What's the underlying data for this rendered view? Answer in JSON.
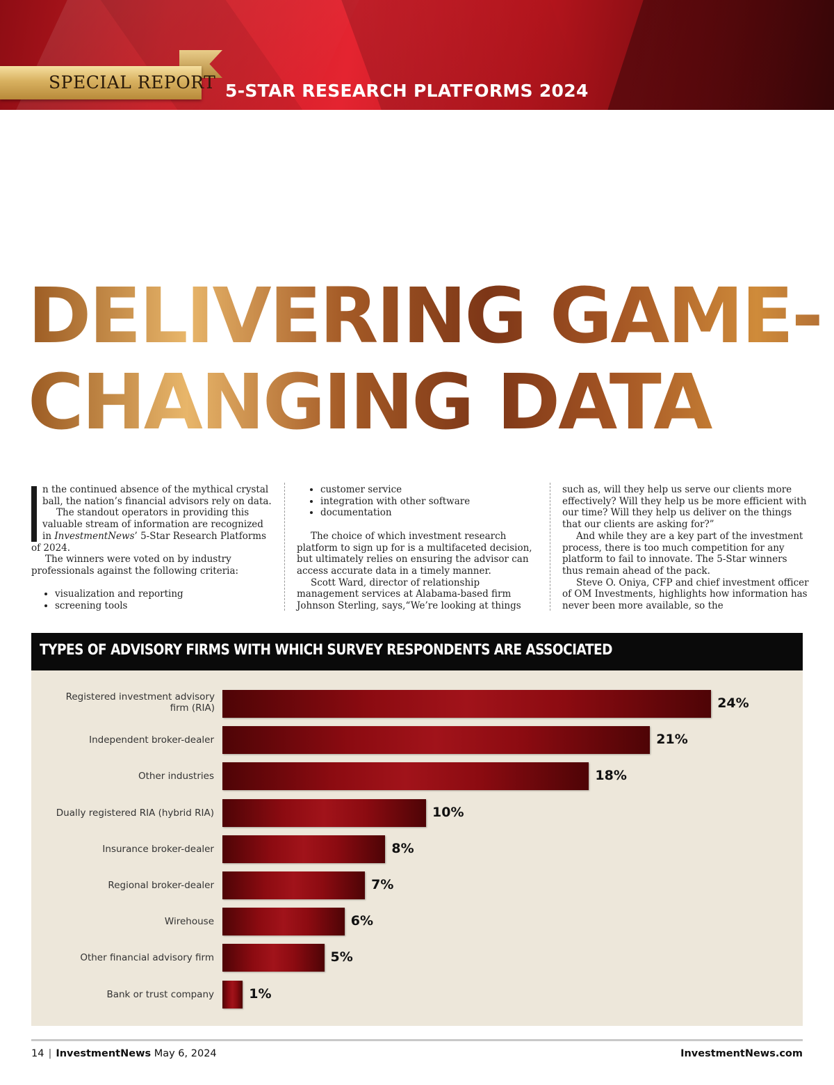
{
  "header": {
    "ribbon_label": "SPECIAL REPORT",
    "series_title": "5-STAR RESEARCH PLATFORMS 2024"
  },
  "headline": {
    "line1": "DELIVERING GAME-",
    "line2": "CHANGING DATA"
  },
  "article": {
    "col1": {
      "p1": "n the continued absence of the mythical crystal ball, the nation’s financial advisors rely on data.",
      "p2_pre": "The standout operators in providing this valuable stream of information are recognized in ",
      "p2_em": "InvestmentNews",
      "p2_post": "’ 5-Star Research Platforms of 2024.",
      "p3": "The winners were voted on by industry professionals against the following criteria:",
      "bullets": [
        "visualization and reporting",
        "screening tools"
      ]
    },
    "col2": {
      "bullets": [
        "customer service",
        "integration with other software",
        "documentation"
      ],
      "p1": "The choice of which investment research platform to sign up for is a multifaceted decision, but ultimately relies on ensuring the advisor can access accurate data in a timely manner.",
      "p2": "Scott Ward, director of relationship management services at Alabama-based firm Johnson Sterling, says,“We’re looking at things"
    },
    "col3": {
      "p1": "such as, will they help us serve our clients more effectively? Will they help us be more efficient with our time? Will they help us deliver on the things that our clients are asking for?”",
      "p2": "And while they are a key part of the investment process, there is too much competition for any platform to fail to innovate. The 5-Star winners thus remain ahead of the pack.",
      "p3": "Steve O. Oniya, CFP and chief investment officer of OM Investments, highlights how information has never been more available, so the"
    }
  },
  "chart_data": {
    "type": "bar",
    "orientation": "horizontal",
    "title": "TYPES OF ADVISORY FIRMS WITH WHICH SURVEY RESPONDENTS ARE ASSOCIATED",
    "categories": [
      "Registered investment advisory firm (RIA)",
      "Independent broker-dealer",
      "Other industries",
      "Dually registered RIA (hybrid RIA)",
      "Insurance broker-dealer",
      "Regional broker-dealer",
      "Wirehouse",
      "Other financial advisory firm",
      "Bank or trust company"
    ],
    "values": [
      24,
      21,
      18,
      10,
      8,
      7,
      6,
      5,
      1
    ],
    "value_labels": [
      "24%",
      "21%",
      "18%",
      "10%",
      "8%",
      "7%",
      "6%",
      "5%",
      "1%"
    ],
    "unit": "%",
    "bar_color": "#8c0b11",
    "background_color": "#ede7da",
    "grid": false
  },
  "footer": {
    "page_number": "14",
    "publication": "InvestmentNews",
    "date": "May 6, 2024",
    "site": "InvestmentNews.com"
  }
}
